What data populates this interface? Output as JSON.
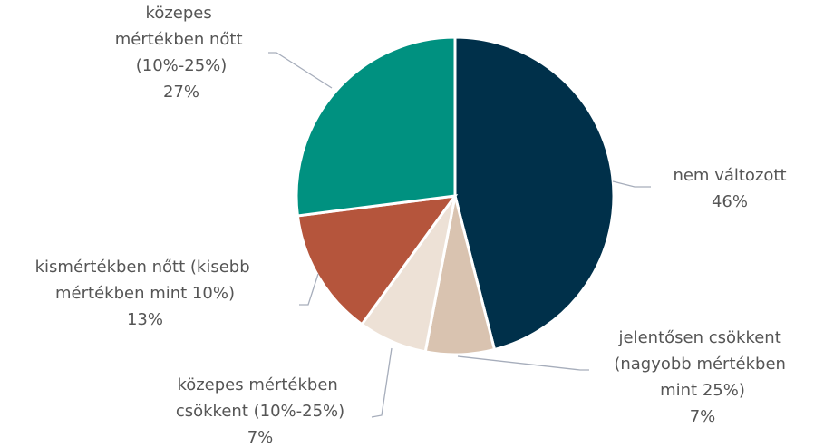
{
  "chart_data": {
    "type": "pie",
    "categories": [
      "nem változott",
      "jelentősen csökkent (nagyobb mértékben mint 25%)",
      "közepes mértékben csökkent (10%-25%)",
      "kismértékben nőtt (kisebb mértékben mint 10%)",
      "közepes mértékben nőtt (10%-25%)"
    ],
    "values": [
      46,
      7,
      7,
      13,
      27
    ],
    "value_labels": [
      "46%",
      "7%",
      "7%",
      "13%",
      "27%"
    ],
    "colors": [
      "#00304a",
      "#d9c3b0",
      "#ede1d6",
      "#b5553c",
      "#009180"
    ]
  }
}
